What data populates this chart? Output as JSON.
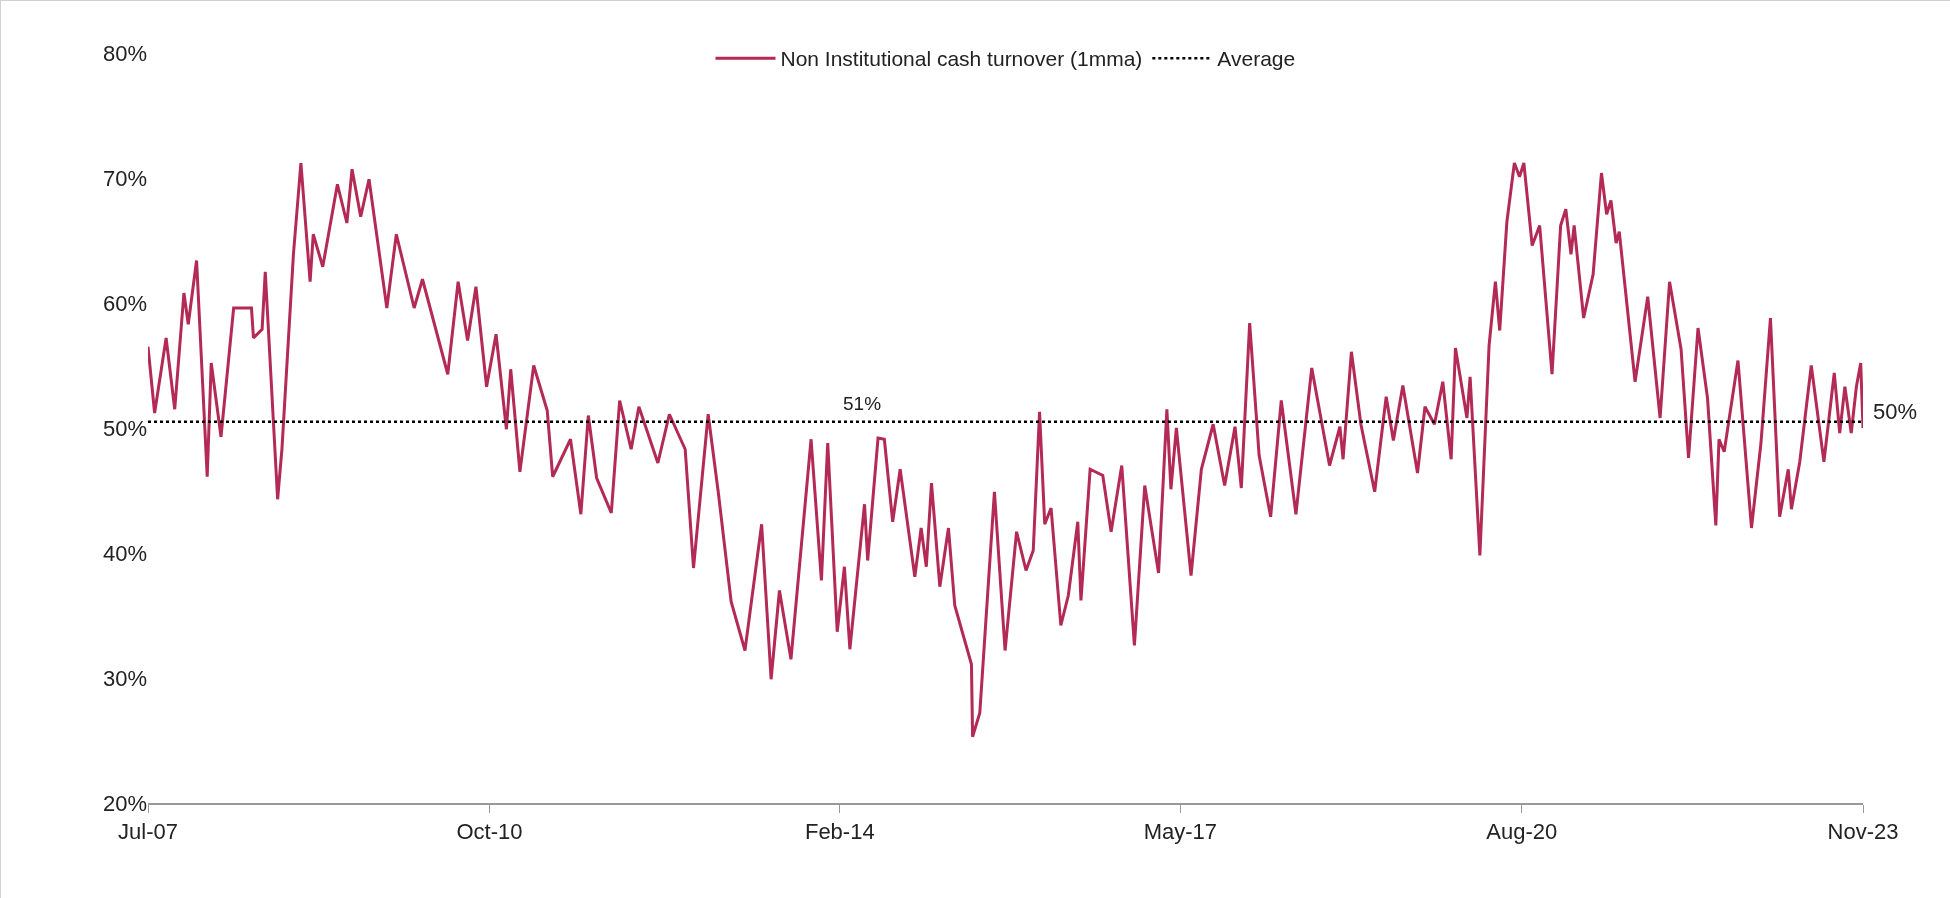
{
  "chart_data": {
    "type": "line",
    "x": [
      "2007-07-01",
      "2007-07-24",
      "2007-09-02",
      "2007-10-02",
      "2007-11-03",
      "2007-11-18",
      "2007-12-17",
      "2008-01-23",
      "2008-02-06",
      "2008-03-11",
      "2008-04-24",
      "2008-06-25",
      "2008-07-02",
      "2008-08-01",
      "2008-08-12",
      "2008-09-24",
      "2008-10-09",
      "2008-11-18",
      "2008-12-14",
      "2009-01-15",
      "2009-01-26",
      "2009-02-28",
      "2009-04-20",
      "2009-05-23",
      "2009-06-10",
      "2009-07-10",
      "2009-08-08",
      "2009-10-09",
      "2009-11-11",
      "2010-01-12",
      "2010-02-10",
      "2010-05-09",
      "2010-06-14",
      "2010-07-17",
      "2010-08-15",
      "2010-09-21",
      "2010-10-24",
      "2010-11-29",
      "2010-12-14",
      "2011-01-15",
      "2011-03-04",
      "2011-04-20",
      "2011-05-09",
      "2011-07-10",
      "2011-08-15",
      "2011-09-10",
      "2011-10-09",
      "2011-11-29",
      "2011-12-28",
      "2012-02-06",
      "2012-03-04",
      "2012-05-09",
      "2012-06-18",
      "2012-08-12",
      "2012-09-10",
      "2012-10-31",
      "2012-12-06",
      "2013-01-19",
      "2013-03-08",
      "2013-05-05",
      "2013-06-07",
      "2013-07-06",
      "2013-08-15",
      "2013-10-24",
      "2013-11-29",
      "2013-12-21",
      "2014-01-23",
      "2014-02-17",
      "2014-03-08",
      "2014-04-28",
      "2014-05-09",
      "2014-06-14",
      "2014-07-06",
      "2014-08-04",
      "2014-08-30",
      "2014-10-20",
      "2014-11-11",
      "2014-11-29",
      "2014-12-17",
      "2015-01-15",
      "2015-02-14",
      "2015-03-08",
      "2015-05-05",
      "2015-05-09",
      "2015-06-03",
      "2015-07-24",
      "2015-08-30",
      "2015-10-09",
      "2015-11-11",
      "2015-12-06",
      "2015-12-28",
      "2016-01-15",
      "2016-02-06",
      "2016-03-11",
      "2016-04-06",
      "2016-05-09",
      "2016-05-20",
      "2016-06-21",
      "2016-08-04",
      "2016-09-02",
      "2016-10-09",
      "2016-11-22",
      "2016-12-28",
      "2017-02-14",
      "2017-03-15",
      "2017-03-29",
      "2017-04-17",
      "2017-06-07",
      "2017-07-13",
      "2017-08-23",
      "2017-10-02",
      "2017-11-07",
      "2017-11-29",
      "2017-12-28",
      "2018-01-30",
      "2018-03-11",
      "2018-04-17",
      "2018-06-07",
      "2018-08-01",
      "2018-10-02",
      "2018-11-07",
      "2018-11-18",
      "2018-12-17",
      "2019-01-19",
      "2019-03-08",
      "2019-04-17",
      "2019-05-12",
      "2019-06-14",
      "2019-08-04",
      "2019-08-30",
      "2019-10-02",
      "2019-10-31",
      "2019-11-29",
      "2019-12-14",
      "2020-01-23",
      "2020-02-03",
      "2020-03-08",
      "2020-04-09",
      "2020-05-01",
      "2020-05-16",
      "2020-06-10",
      "2020-07-06",
      "2020-07-24",
      "2020-08-08",
      "2020-09-06",
      "2020-10-02",
      "2020-11-14",
      "2020-12-14",
      "2021-01-01",
      "2021-01-19",
      "2021-01-30",
      "2021-03-04",
      "2021-04-06",
      "2021-05-05",
      "2021-05-23",
      "2021-06-07",
      "2021-06-25",
      "2021-07-06",
      "2021-08-30",
      "2021-10-13",
      "2021-11-25",
      "2021-12-28",
      "2022-02-06",
      "2022-03-04",
      "2022-04-06",
      "2022-05-09",
      "2022-06-07",
      "2022-06-18",
      "2022-07-06",
      "2022-08-23",
      "2022-10-09",
      "2022-11-11",
      "2022-12-14",
      "2023-01-15",
      "2023-02-14",
      "2023-02-25",
      "2023-03-26",
      "2023-05-05",
      "2023-06-18",
      "2023-07-24",
      "2023-08-12",
      "2023-08-30",
      "2023-09-21",
      "2023-10-09",
      "2023-10-24",
      "2023-11-01"
    ],
    "series": [
      {
        "name": "Non Institutional cash turnover (1mma)",
        "color": "#b22a55",
        "values": [
          56.5,
          51.2,
          57.2,
          51.5,
          60.8,
          58.3,
          63.4,
          46.1,
          55.2,
          49.3,
          59.6,
          59.6,
          57.2,
          57.9,
          62.5,
          44.3,
          48.3,
          63.9,
          71.2,
          61.7,
          65.5,
          62.9,
          69.5,
          66.4,
          70.7,
          66.9,
          69.9,
          59.6,
          65.5,
          59.6,
          61.9,
          54.3,
          61.7,
          57.0,
          61.3,
          53.3,
          57.5,
          49.9,
          54.7,
          46.5,
          55.0,
          51.4,
          46.1,
          49.1,
          43.1,
          51.0,
          46.0,
          43.2,
          52.2,
          48.3,
          51.7,
          47.2,
          51.1,
          48.3,
          38.8,
          51.1,
          44.7,
          36.1,
          32.2,
          42.3,
          29.9,
          37.0,
          31.5,
          49.1,
          37.8,
          48.8,
          33.7,
          38.9,
          32.3,
          43.9,
          39.4,
          49.2,
          49.1,
          42.5,
          46.7,
          38.1,
          42.0,
          38.9,
          45.6,
          37.3,
          42.0,
          35.8,
          31.1,
          25.3,
          27.2,
          44.9,
          32.2,
          41.7,
          38.6,
          40.2,
          51.3,
          42.3,
          43.6,
          34.2,
          36.6,
          42.5,
          36.2,
          46.7,
          46.2,
          41.7,
          47.0,
          32.6,
          45.4,
          38.4,
          51.5,
          45.1,
          50.0,
          38.2,
          46.7,
          50.3,
          45.4,
          50.1,
          45.2,
          58.4,
          47.8,
          42.9,
          52.2,
          43.1,
          54.8,
          47.0,
          50.1,
          47.5,
          56.1,
          50.3,
          44.9,
          52.5,
          49.0,
          53.4,
          46.4,
          51.7,
          50.3,
          53.7,
          47.5,
          56.4,
          50.8,
          54.1,
          39.8,
          56.6,
          61.7,
          57.8,
          66.5,
          71.2,
          70.1,
          71.2,
          64.6,
          66.2,
          54.3,
          66.2,
          67.5,
          63.9,
          66.2,
          58.8,
          62.3,
          70.4,
          67.1,
          68.2,
          64.8,
          65.7,
          53.7,
          60.5,
          50.8,
          61.7,
          56.3,
          47.6,
          58.0,
          52.4,
          42.2,
          49.1,
          48.1,
          55.4,
          42.0,
          48.8,
          58.8,
          42.9,
          46.7,
          43.5,
          47.3,
          55.0,
          47.3,
          54.4,
          49.6,
          53.3,
          49.6,
          53.3,
          55.2,
          50
        ]
      }
    ],
    "xlim": [
      "2007-07",
      "2023-11"
    ],
    "xticks": [
      {
        "value": "2007-07",
        "label": "Jul-07"
      },
      {
        "value": "2010-10",
        "label": "Oct-10"
      },
      {
        "value": "2014-02",
        "label": "Feb-14"
      },
      {
        "value": "2017-05",
        "label": "May-17"
      },
      {
        "value": "2020-08",
        "label": "Aug-20"
      },
      {
        "value": "2023-11",
        "label": "Nov-23"
      }
    ],
    "ylim": [
      20,
      80
    ],
    "yticks": [
      {
        "value": 20,
        "label": "20%"
      },
      {
        "value": 30,
        "label": "30%"
      },
      {
        "value": 40,
        "label": "40%"
      },
      {
        "value": 50,
        "label": "50%"
      },
      {
        "value": 60,
        "label": "60%"
      },
      {
        "value": 70,
        "label": "70%"
      },
      {
        "value": 80,
        "label": "80%"
      }
    ],
    "ref_lines": [
      {
        "axis": "y",
        "value": 50.5,
        "label": "Average",
        "color": "#000000",
        "line_style": "dotted"
      }
    ],
    "annotations": [
      {
        "text": "51%",
        "x": "2014-04-20",
        "y": 50.5
      },
      {
        "text": "50%",
        "x": "2023-11",
        "y": 50
      }
    ],
    "grid": false,
    "legend": "top",
    "marker": "none",
    "line_style": "solid"
  }
}
